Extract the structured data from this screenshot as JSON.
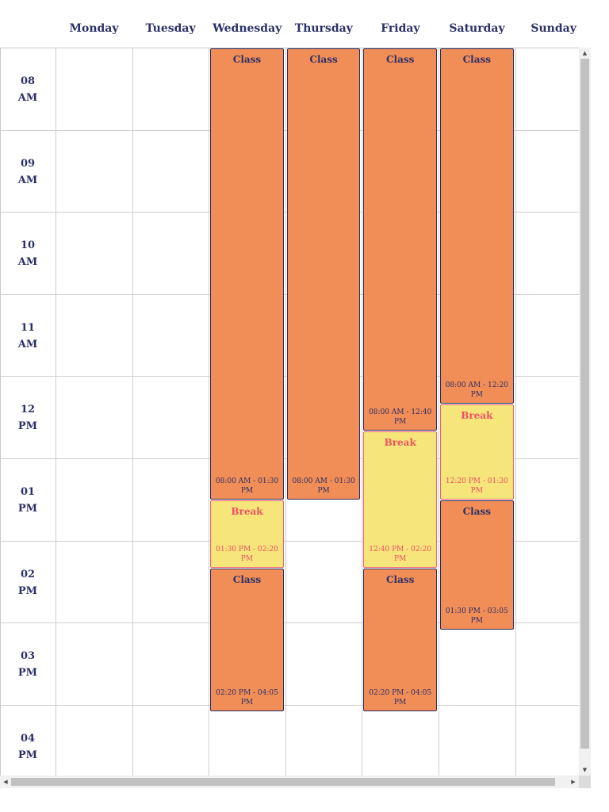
{
  "days": [
    "Monday",
    "Tuesday",
    "Wednesday",
    "Thursday",
    "Friday",
    "Saturday",
    "Sunday"
  ],
  "time_slots": [
    {
      "hour": "08",
      "period": "AM"
    },
    {
      "hour": "09",
      "period": "AM"
    },
    {
      "hour": "10",
      "period": "AM"
    },
    {
      "hour": "11",
      "period": "AM"
    },
    {
      "hour": "12",
      "period": "PM"
    },
    {
      "hour": "01",
      "period": "PM"
    },
    {
      "hour": "02",
      "period": "PM"
    },
    {
      "hour": "03",
      "period": "PM"
    },
    {
      "hour": "04",
      "period": "PM"
    }
  ],
  "events": [
    {
      "day": "Wednesday",
      "kind": "class",
      "title": "Class",
      "time": "08:00 AM - 01:30 PM",
      "start": "08:00",
      "end": "13:30"
    },
    {
      "day": "Wednesday",
      "kind": "break",
      "title": "Break",
      "time": "01:30 PM - 02:20 PM",
      "start": "13:30",
      "end": "14:20"
    },
    {
      "day": "Wednesday",
      "kind": "class",
      "title": "Class",
      "time": "02:20 PM - 04:05 PM",
      "start": "14:20",
      "end": "16:05"
    },
    {
      "day": "Thursday",
      "kind": "class",
      "title": "Class",
      "time": "08:00 AM - 01:30 PM",
      "start": "08:00",
      "end": "13:30"
    },
    {
      "day": "Friday",
      "kind": "class",
      "title": "Class",
      "time": "08:00 AM - 12:40 PM",
      "start": "08:00",
      "end": "12:40"
    },
    {
      "day": "Friday",
      "kind": "break",
      "title": "Break",
      "time": "12:40 PM - 02:20 PM",
      "start": "12:40",
      "end": "14:20"
    },
    {
      "day": "Friday",
      "kind": "class",
      "title": "Class",
      "time": "02:20 PM - 04:05 PM",
      "start": "14:20",
      "end": "16:05"
    },
    {
      "day": "Saturday",
      "kind": "class",
      "title": "Class",
      "time": "08:00 AM - 12:20 PM",
      "start": "08:00",
      "end": "12:20"
    },
    {
      "day": "Saturday",
      "kind": "break",
      "title": "Break",
      "time": "12:20 PM - 01:30 PM",
      "start": "12:20",
      "end": "13:30"
    },
    {
      "day": "Saturday",
      "kind": "class",
      "title": "Class",
      "time": "01:30 PM - 03:05 PM",
      "start": "13:30",
      "end": "15:05"
    }
  ],
  "colors": {
    "class_fill": "#f18d57",
    "class_border": "#2c2c5e",
    "break_fill": "#f6e57a",
    "break_border": "#ef6070",
    "header_text": "#2b3066",
    "break_text": "#ef5063"
  },
  "scrollbar": {
    "up_icon": "triangle-up",
    "down_icon": "triangle-down",
    "left_icon": "triangle-left",
    "right_icon": "triangle-right"
  }
}
